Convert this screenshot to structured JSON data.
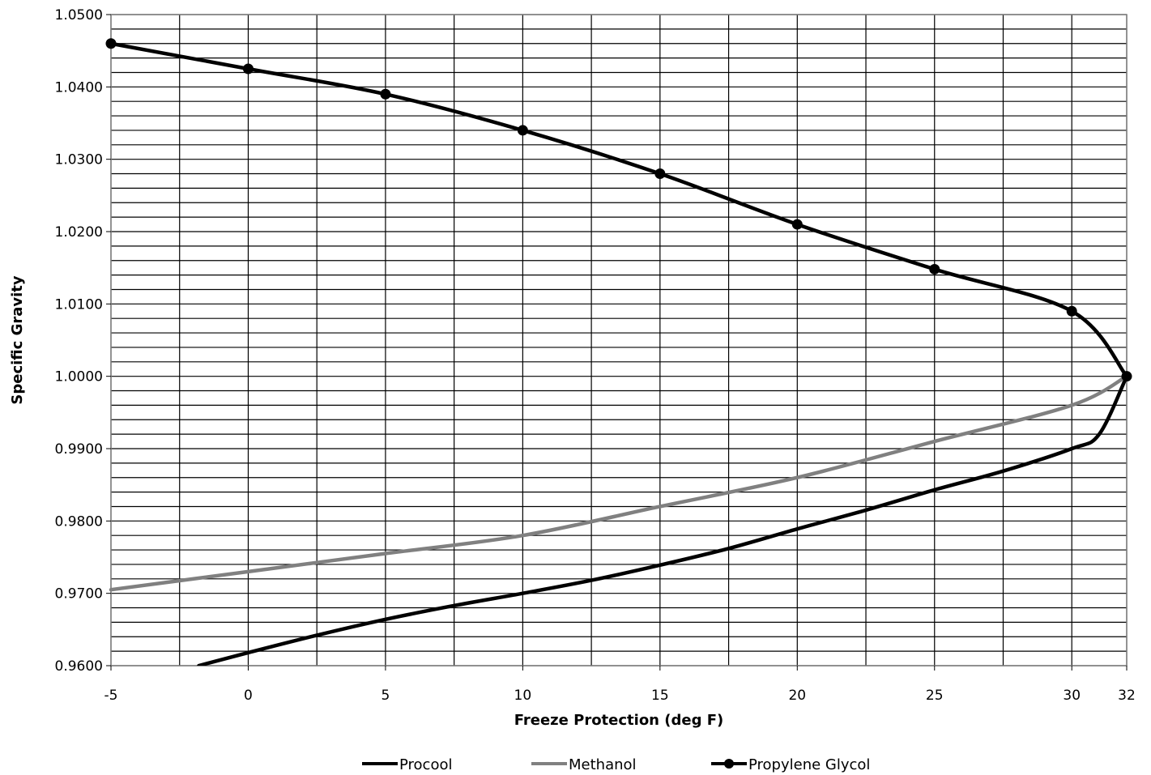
{
  "chart_data": {
    "type": "line",
    "title": "",
    "xlabel": "Freeze Protection (deg F)",
    "ylabel": "Specific Gravity",
    "xlim": [
      -5,
      32
    ],
    "ylim": [
      0.96,
      1.05
    ],
    "x_tick_values": [
      -5,
      0,
      5,
      10,
      15,
      20,
      25,
      30,
      32
    ],
    "x_tick_labels": [
      "-5",
      "0",
      "5",
      "10",
      "15",
      "20",
      "25",
      "30",
      "32"
    ],
    "y_tick_values": [
      0.96,
      0.97,
      0.98,
      0.99,
      1.0,
      1.01,
      1.02,
      1.03,
      1.04,
      1.05
    ],
    "y_tick_labels": [
      "0.9600",
      "0.9700",
      "0.9800",
      "0.9900",
      "1.0000",
      "1.0100",
      "1.0200",
      "1.0300",
      "1.0400",
      "1.0500"
    ],
    "grid": true,
    "legend_position": "bottom",
    "series": [
      {
        "name": "Procool",
        "color": "#000000",
        "markers": false,
        "points": [
          [
            -1.8,
            0.96
          ],
          [
            0,
            0.9618
          ],
          [
            2.5,
            0.9642
          ],
          [
            5,
            0.9664
          ],
          [
            7.5,
            0.9683
          ],
          [
            10,
            0.97
          ],
          [
            12.5,
            0.9718
          ],
          [
            15,
            0.9739
          ],
          [
            17.5,
            0.9762
          ],
          [
            20,
            0.9789
          ],
          [
            22.5,
            0.9815
          ],
          [
            25,
            0.9843
          ],
          [
            27.5,
            0.9869
          ],
          [
            30,
            0.99
          ],
          [
            31,
            0.992
          ],
          [
            32,
            1.0
          ]
        ]
      },
      {
        "name": "Methanol",
        "color": "#808080",
        "markers": false,
        "points": [
          [
            -5,
            0.9705
          ],
          [
            0,
            0.973
          ],
          [
            5,
            0.9755
          ],
          [
            10,
            0.978
          ],
          [
            15,
            0.982
          ],
          [
            20,
            0.986
          ],
          [
            25,
            0.991
          ],
          [
            30,
            0.996
          ],
          [
            32,
            1.0
          ]
        ]
      },
      {
        "name": "Propylene Glycol",
        "color": "#000000",
        "markers": true,
        "points": [
          [
            -5,
            1.046
          ],
          [
            0,
            1.0425
          ],
          [
            5,
            1.039
          ],
          [
            10,
            1.034
          ],
          [
            15,
            1.028
          ],
          [
            20,
            1.021
          ],
          [
            25,
            1.0148
          ],
          [
            30,
            1.009
          ],
          [
            32,
            1.0
          ]
        ]
      }
    ]
  }
}
